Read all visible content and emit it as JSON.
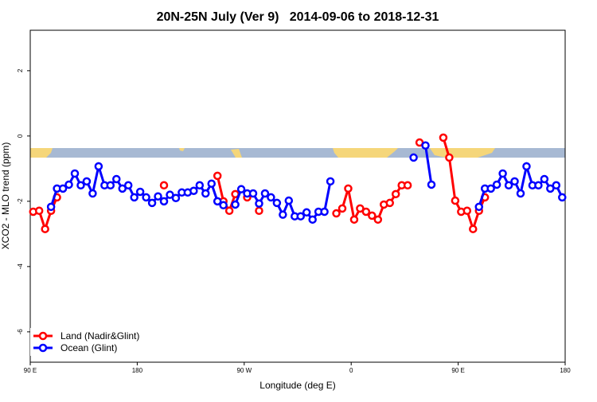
{
  "chart_data": {
    "type": "line",
    "title": "20N-25N July (Ver 9)   2014-09-06 to 2018-12-31",
    "x_label": "Longitude (deg E)",
    "y_label": "XCO2 - MLO trend (ppm)",
    "xlim": [
      90,
      540
    ],
    "ylim": [
      -6.93,
      3.24
    ],
    "xticks": [
      {
        "value": 90,
        "label": "90 E"
      },
      180,
      {
        "value": 270,
        "label": "90 W"
      },
      {
        "value": 360,
        "label": "0"
      },
      {
        "value": 450,
        "label": "90 E"
      },
      {
        "value": 540,
        "label": "180"
      }
    ],
    "yticks": [
      2,
      0,
      -2,
      -4,
      -6
    ],
    "legend": "bottom-left",
    "x": [
      92.5,
      97.5,
      102.5,
      107.5,
      112.5,
      117.5,
      122.5,
      127.5,
      132.5,
      137.5,
      142.5,
      147.5,
      152.5,
      157.5,
      162.5,
      167.5,
      172.5,
      177.5,
      182.5,
      187.5,
      192.5,
      197.5,
      202.5,
      207.5,
      212.5,
      217.5,
      222.5,
      227.5,
      232.5,
      237.5,
      242.5,
      247.5,
      252.5,
      257.5,
      262.5,
      267.5,
      272.5,
      277.5,
      282.5,
      287.5,
      292.5,
      297.5,
      302.5,
      307.5,
      312.5,
      317.5,
      322.5,
      327.5,
      332.5,
      337.5,
      342.5,
      347.5,
      352.5,
      357.5,
      362.5,
      367.5,
      372.5,
      377.5,
      382.5,
      387.5,
      392.5,
      397.5,
      402.5,
      407.5,
      412.5,
      417.5,
      422.5,
      427.5,
      432.5,
      437.5,
      442.5,
      447.5,
      452.5,
      457.5,
      462.5,
      467.5,
      472.5,
      477.5,
      482.5,
      487.5,
      492.5,
      497.5,
      502.5,
      507.5,
      512.5,
      517.5,
      522.5,
      527.5,
      532.5,
      537.5
    ],
    "series": [
      {
        "name": "Land (Nadir&Glint)",
        "color": "#ff0000",
        "values": [
          -2.32,
          -2.29,
          -2.85,
          -2.29,
          -1.88,
          null,
          null,
          null,
          null,
          null,
          null,
          null,
          null,
          null,
          null,
          null,
          null,
          null,
          null,
          null,
          null,
          null,
          -1.51,
          null,
          null,
          null,
          null,
          null,
          null,
          null,
          null,
          -1.22,
          -2.0,
          -2.29,
          -1.78,
          null,
          -1.88,
          null,
          -2.29,
          null,
          null,
          null,
          null,
          null,
          null,
          null,
          null,
          null,
          null,
          null,
          null,
          -2.37,
          -2.22,
          -1.61,
          -2.56,
          -2.22,
          -2.32,
          -2.44,
          -2.56,
          -2.1,
          -2.05,
          -1.78,
          -1.51,
          -1.51,
          null,
          -0.2,
          null,
          null,
          null,
          -0.05,
          -0.66,
          -1.98,
          -2.32,
          -2.29,
          -2.85,
          -2.29,
          -1.88,
          null,
          null,
          null,
          null,
          null,
          null,
          null,
          null,
          null,
          null,
          null,
          null,
          null
        ]
      },
      {
        "name": "Ocean (Glint)",
        "color": "#0000ff",
        "values": [
          null,
          null,
          null,
          -2.17,
          -1.61,
          -1.61,
          -1.49,
          -1.15,
          -1.51,
          -1.39,
          -1.76,
          -0.93,
          -1.51,
          -1.51,
          -1.32,
          -1.61,
          -1.51,
          -1.88,
          -1.71,
          -1.88,
          -2.05,
          -1.85,
          -2.0,
          -1.8,
          -1.9,
          -1.73,
          -1.73,
          -1.68,
          -1.51,
          -1.76,
          -1.46,
          -2.0,
          -2.12,
          null,
          -2.1,
          -1.63,
          -1.76,
          -1.76,
          -2.07,
          -1.76,
          -1.88,
          -2.05,
          -2.41,
          -1.98,
          -2.46,
          -2.46,
          -2.34,
          -2.56,
          -2.32,
          -2.32,
          -1.39,
          null,
          null,
          null,
          null,
          null,
          null,
          null,
          null,
          null,
          null,
          null,
          null,
          null,
          -0.66,
          null,
          -0.29,
          -1.49,
          null,
          null,
          null,
          null,
          null,
          null,
          null,
          -2.17,
          -1.61,
          -1.61,
          -1.49,
          -1.15,
          -1.51,
          -1.39,
          -1.76,
          -0.93,
          -1.51,
          -1.51,
          -1.32,
          -1.61,
          -1.51,
          -1.88
        ]
      }
    ]
  }
}
